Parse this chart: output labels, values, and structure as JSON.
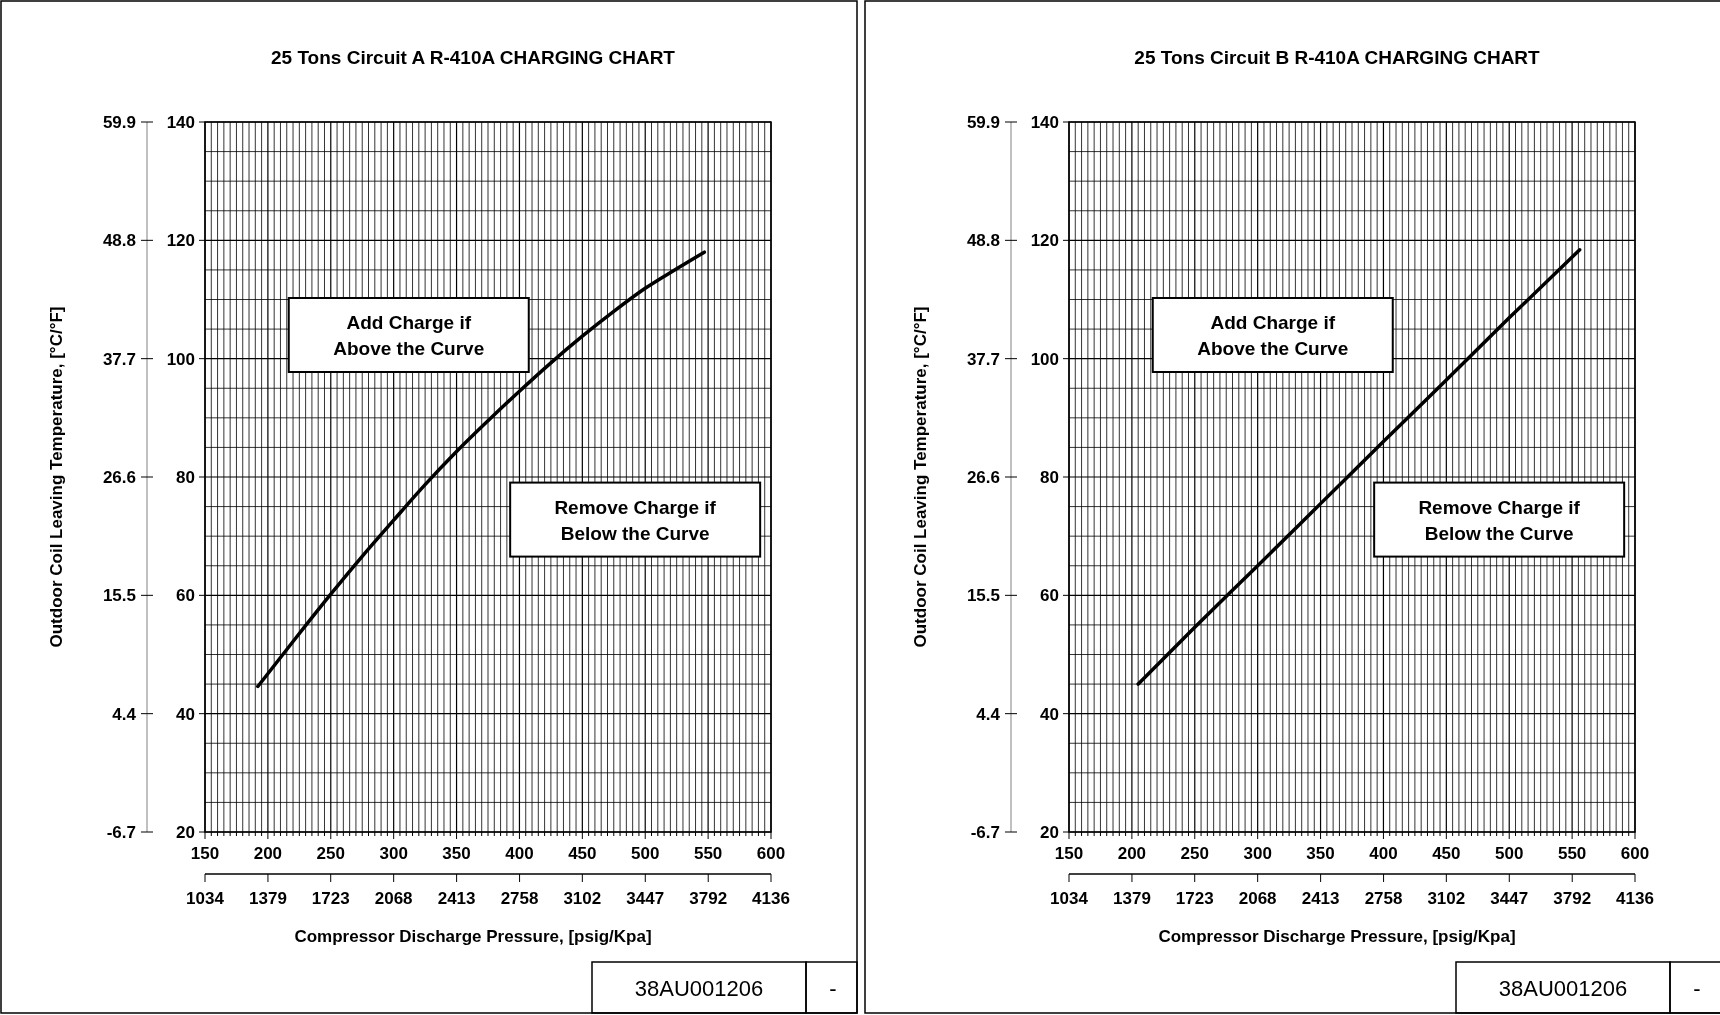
{
  "chart_data": [
    {
      "type": "line",
      "title": "25 Tons Circuit A R-410A CHARGING CHART",
      "xlabel": "Compressor Discharge Pressure, [psig/Kpa]",
      "y2label": "Outdoor Coil Leaving Temperature, [°C/°F]",
      "series": [
        {
          "color": "#000000",
          "x": [
            192,
            220,
            250,
            275,
            300,
            325,
            350,
            375,
            400,
            425,
            450,
            475,
            500,
            525,
            547
          ],
          "values": [
            44.6,
            52.2,
            60.2,
            66.6,
            72.7,
            78.7,
            84.3,
            89.5,
            94.5,
            99.3,
            103.8,
            108,
            111.9,
            115.2,
            118
          ]
        }
      ],
      "xlim": [
        150,
        600
      ],
      "xticks": [
        150,
        {
          "value": 155,
          "label": null
        },
        {
          "value": 160,
          "label": null
        },
        {
          "value": 165,
          "label": null
        },
        {
          "value": 170,
          "label": null
        },
        {
          "value": 175,
          "label": null
        },
        {
          "value": 180,
          "label": null
        },
        {
          "value": 185,
          "label": null
        },
        {
          "value": 190,
          "label": null
        },
        {
          "value": 195,
          "label": null
        },
        200,
        {
          "value": 205,
          "label": null
        },
        {
          "value": 210,
          "label": null
        },
        {
          "value": 215,
          "label": null
        },
        {
          "value": 220,
          "label": null
        },
        {
          "value": 225,
          "label": null
        },
        {
          "value": 230,
          "label": null
        },
        {
          "value": 235,
          "label": null
        },
        {
          "value": 240,
          "label": null
        },
        {
          "value": 245,
          "label": null
        },
        250,
        {
          "value": 255,
          "label": null
        },
        {
          "value": 260,
          "label": null
        },
        {
          "value": 265,
          "label": null
        },
        {
          "value": 270,
          "label": null
        },
        {
          "value": 275,
          "label": null
        },
        {
          "value": 280,
          "label": null
        },
        {
          "value": 285,
          "label": null
        },
        {
          "value": 290,
          "label": null
        },
        {
          "value": 295,
          "label": null
        },
        300,
        {
          "value": 305,
          "label": null
        },
        {
          "value": 310,
          "label": null
        },
        {
          "value": 315,
          "label": null
        },
        {
          "value": 320,
          "label": null
        },
        {
          "value": 325,
          "label": null
        },
        {
          "value": 330,
          "label": null
        },
        {
          "value": 335,
          "label": null
        },
        {
          "value": 340,
          "label": null
        },
        {
          "value": 345,
          "label": null
        },
        350,
        {
          "value": 355,
          "label": null
        },
        {
          "value": 360,
          "label": null
        },
        {
          "value": 365,
          "label": null
        },
        {
          "value": 370,
          "label": null
        },
        {
          "value": 375,
          "label": null
        },
        {
          "value": 380,
          "label": null
        },
        {
          "value": 385,
          "label": null
        },
        {
          "value": 390,
          "label": null
        },
        {
          "value": 395,
          "label": null
        },
        400,
        {
          "value": 405,
          "label": null
        },
        {
          "value": 410,
          "label": null
        },
        {
          "value": 415,
          "label": null
        },
        {
          "value": 420,
          "label": null
        },
        {
          "value": 425,
          "label": null
        },
        {
          "value": 430,
          "label": null
        },
        {
          "value": 435,
          "label": null
        },
        {
          "value": 440,
          "label": null
        },
        {
          "value": 445,
          "label": null
        },
        450,
        {
          "value": 455,
          "label": null
        },
        {
          "value": 460,
          "label": null
        },
        {
          "value": 465,
          "label": null
        },
        {
          "value": 470,
          "label": null
        },
        {
          "value": 475,
          "label": null
        },
        {
          "value": 480,
          "label": null
        },
        {
          "value": 485,
          "label": null
        },
        {
          "value": 490,
          "label": null
        },
        {
          "value": 495,
          "label": null
        },
        500,
        {
          "value": 505,
          "label": null
        },
        {
          "value": 510,
          "label": null
        },
        {
          "value": 515,
          "label": null
        },
        {
          "value": 520,
          "label": null
        },
        {
          "value": 525,
          "label": null
        },
        {
          "value": 530,
          "label": null
        },
        {
          "value": 535,
          "label": null
        },
        {
          "value": 540,
          "label": null
        },
        {
          "value": 545,
          "label": null
        },
        550,
        {
          "value": 555,
          "label": null
        },
        {
          "value": 560,
          "label": null
        },
        {
          "value": 565,
          "label": null
        },
        {
          "value": 570,
          "label": null
        },
        {
          "value": 575,
          "label": null
        },
        {
          "value": 580,
          "label": null
        },
        {
          "value": 585,
          "label": null
        },
        {
          "value": 590,
          "label": null
        },
        {
          "value": 595,
          "label": null
        },
        600
      ],
      "x2lim": [
        1034,
        4136
      ],
      "x2ticks": [
        1034,
        1379,
        1723,
        2068,
        2413,
        2758,
        3102,
        3447,
        3792,
        4136
      ],
      "ylim": [
        20,
        140
      ],
      "yticks": [
        20,
        {
          "value": 25,
          "label": null
        },
        {
          "value": 30,
          "label": null
        },
        {
          "value": 35,
          "label": null
        },
        40,
        {
          "value": 45,
          "label": null
        },
        {
          "value": 50,
          "label": null
        },
        {
          "value": 55,
          "label": null
        },
        60,
        {
          "value": 65,
          "label": null
        },
        {
          "value": 70,
          "label": null
        },
        {
          "value": 75,
          "label": null
        },
        80,
        {
          "value": 85,
          "label": null
        },
        {
          "value": 90,
          "label": null
        },
        {
          "value": 95,
          "label": null
        },
        100,
        {
          "value": 105,
          "label": null
        },
        {
          "value": 110,
          "label": null
        },
        {
          "value": 115,
          "label": null
        },
        120,
        {
          "value": 125,
          "label": null
        },
        {
          "value": 130,
          "label": null
        },
        {
          "value": 135,
          "label": null
        },
        140
      ],
      "y2lim": [
        -6.7,
        59.9
      ],
      "y2ticks": [
        -6.7,
        4.4,
        15.5,
        26.6,
        37.7,
        48.8,
        59.9
      ],
      "grid": true,
      "marker": "none",
      "annotations": [
        "Add Charge if Above the Curve",
        "Remove Charge if Below the Curve",
        "38AU001206",
        "-"
      ]
    },
    {
      "type": "line",
      "title": "25 Tons Circuit B R-410A CHARGING CHART",
      "xlabel": "Compressor Discharge Pressure, [psig/Kpa]",
      "y2label": "Outdoor Coil Leaving Temperature, [°C/°F]",
      "series": [
        {
          "color": "#000000",
          "x": [
            205,
            250,
            300,
            350,
            400,
            450,
            500,
            556
          ],
          "values": [
            45,
            54.6,
            65,
            75.5,
            86,
            96.4,
            106.9,
            118.4
          ]
        }
      ],
      "xlim": [
        150,
        600
      ],
      "xticks": [
        150,
        {
          "value": 155,
          "label": null
        },
        {
          "value": 160,
          "label": null
        },
        {
          "value": 165,
          "label": null
        },
        {
          "value": 170,
          "label": null
        },
        {
          "value": 175,
          "label": null
        },
        {
          "value": 180,
          "label": null
        },
        {
          "value": 185,
          "label": null
        },
        {
          "value": 190,
          "label": null
        },
        {
          "value": 195,
          "label": null
        },
        200,
        {
          "value": 205,
          "label": null
        },
        {
          "value": 210,
          "label": null
        },
        {
          "value": 215,
          "label": null
        },
        {
          "value": 220,
          "label": null
        },
        {
          "value": 225,
          "label": null
        },
        {
          "value": 230,
          "label": null
        },
        {
          "value": 235,
          "label": null
        },
        {
          "value": 240,
          "label": null
        },
        {
          "value": 245,
          "label": null
        },
        250,
        {
          "value": 255,
          "label": null
        },
        {
          "value": 260,
          "label": null
        },
        {
          "value": 265,
          "label": null
        },
        {
          "value": 270,
          "label": null
        },
        {
          "value": 275,
          "label": null
        },
        {
          "value": 280,
          "label": null
        },
        {
          "value": 285,
          "label": null
        },
        {
          "value": 290,
          "label": null
        },
        {
          "value": 295,
          "label": null
        },
        300,
        {
          "value": 305,
          "label": null
        },
        {
          "value": 310,
          "label": null
        },
        {
          "value": 315,
          "label": null
        },
        {
          "value": 320,
          "label": null
        },
        {
          "value": 325,
          "label": null
        },
        {
          "value": 330,
          "label": null
        },
        {
          "value": 335,
          "label": null
        },
        {
          "value": 340,
          "label": null
        },
        {
          "value": 345,
          "label": null
        },
        350,
        {
          "value": 355,
          "label": null
        },
        {
          "value": 360,
          "label": null
        },
        {
          "value": 365,
          "label": null
        },
        {
          "value": 370,
          "label": null
        },
        {
          "value": 375,
          "label": null
        },
        {
          "value": 380,
          "label": null
        },
        {
          "value": 385,
          "label": null
        },
        {
          "value": 390,
          "label": null
        },
        {
          "value": 395,
          "label": null
        },
        400,
        {
          "value": 405,
          "label": null
        },
        {
          "value": 410,
          "label": null
        },
        {
          "value": 415,
          "label": null
        },
        {
          "value": 420,
          "label": null
        },
        {
          "value": 425,
          "label": null
        },
        {
          "value": 430,
          "label": null
        },
        {
          "value": 435,
          "label": null
        },
        {
          "value": 440,
          "label": null
        },
        {
          "value": 445,
          "label": null
        },
        450,
        {
          "value": 455,
          "label": null
        },
        {
          "value": 460,
          "label": null
        },
        {
          "value": 465,
          "label": null
        },
        {
          "value": 470,
          "label": null
        },
        {
          "value": 475,
          "label": null
        },
        {
          "value": 480,
          "label": null
        },
        {
          "value": 485,
          "label": null
        },
        {
          "value": 490,
          "label": null
        },
        {
          "value": 495,
          "label": null
        },
        500,
        {
          "value": 505,
          "label": null
        },
        {
          "value": 510,
          "label": null
        },
        {
          "value": 515,
          "label": null
        },
        {
          "value": 520,
          "label": null
        },
        {
          "value": 525,
          "label": null
        },
        {
          "value": 530,
          "label": null
        },
        {
          "value": 535,
          "label": null
        },
        {
          "value": 540,
          "label": null
        },
        {
          "value": 545,
          "label": null
        },
        550,
        {
          "value": 555,
          "label": null
        },
        {
          "value": 560,
          "label": null
        },
        {
          "value": 565,
          "label": null
        },
        {
          "value": 570,
          "label": null
        },
        {
          "value": 575,
          "label": null
        },
        {
          "value": 580,
          "label": null
        },
        {
          "value": 585,
          "label": null
        },
        {
          "value": 590,
          "label": null
        },
        {
          "value": 595,
          "label": null
        },
        600
      ],
      "x2lim": [
        1034,
        4136
      ],
      "x2ticks": [
        1034,
        1379,
        1723,
        2068,
        2413,
        2758,
        3102,
        3447,
        3792,
        4136
      ],
      "ylim": [
        20,
        140
      ],
      "yticks": [
        20,
        {
          "value": 25,
          "label": null
        },
        {
          "value": 30,
          "label": null
        },
        {
          "value": 35,
          "label": null
        },
        40,
        {
          "value": 45,
          "label": null
        },
        {
          "value": 50,
          "label": null
        },
        {
          "value": 55,
          "label": null
        },
        60,
        {
          "value": 65,
          "label": null
        },
        {
          "value": 70,
          "label": null
        },
        {
          "value": 75,
          "label": null
        },
        80,
        {
          "value": 85,
          "label": null
        },
        {
          "value": 90,
          "label": null
        },
        {
          "value": 95,
          "label": null
        },
        100,
        {
          "value": 105,
          "label": null
        },
        {
          "value": 110,
          "label": null
        },
        {
          "value": 115,
          "label": null
        },
        120,
        {
          "value": 125,
          "label": null
        },
        {
          "value": 130,
          "label": null
        },
        {
          "value": 135,
          "label": null
        },
        140
      ],
      "y2lim": [
        -6.7,
        59.9
      ],
      "y2ticks": [
        -6.7,
        4.4,
        15.5,
        26.6,
        37.7,
        48.8,
        59.9
      ],
      "grid": true,
      "marker": "none",
      "annotations": [
        "Add Charge if Above the Curve",
        "Remove Charge if Below the Curve",
        "38AU001206",
        "-"
      ]
    }
  ]
}
